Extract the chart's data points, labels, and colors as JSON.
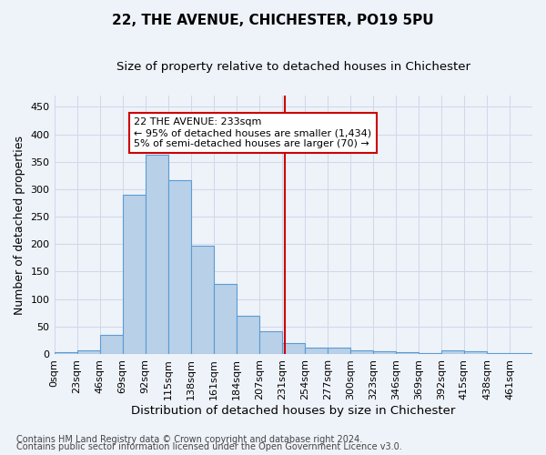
{
  "title": "22, THE AVENUE, CHICHESTER, PO19 5PU",
  "subtitle": "Size of property relative to detached houses in Chichester",
  "xlabel": "Distribution of detached houses by size in Chichester",
  "ylabel": "Number of detached properties",
  "footer_line1": "Contains HM Land Registry data © Crown copyright and database right 2024.",
  "footer_line2": "Contains public sector information licensed under the Open Government Licence v3.0.",
  "bar_labels": [
    "0sqm",
    "23sqm",
    "46sqm",
    "69sqm",
    "92sqm",
    "115sqm",
    "138sqm",
    "161sqm",
    "184sqm",
    "207sqm",
    "231sqm",
    "254sqm",
    "277sqm",
    "300sqm",
    "323sqm",
    "346sqm",
    "369sqm",
    "392sqm",
    "415sqm",
    "438sqm",
    "461sqm"
  ],
  "bar_values": [
    4,
    6,
    35,
    290,
    362,
    317,
    197,
    128,
    70,
    42,
    20,
    11,
    11,
    7,
    5,
    3,
    2,
    6,
    5,
    2,
    1
  ],
  "bar_color": "#b8d0e8",
  "bar_edge_color": "#5b9bd5",
  "bg_color": "#eef2f9",
  "grid_color": "#d0d8e8",
  "annotation_text": "22 THE AVENUE: 233sqm\n← 95% of detached houses are smaller (1,434)\n5% of semi-detached houses are larger (70) →",
  "vline_x": 10.13,
  "ylim": [
    0,
    470
  ],
  "yticks": [
    0,
    50,
    100,
    150,
    200,
    250,
    300,
    350,
    400,
    450
  ],
  "annotation_box_facecolor": "#ffffff",
  "annotation_box_edgecolor": "#cc0000",
  "vline_color": "#cc0000",
  "title_fontsize": 11,
  "subtitle_fontsize": 9.5,
  "xlabel_fontsize": 9.5,
  "ylabel_fontsize": 9,
  "tick_fontsize": 8,
  "annotation_fontsize": 8,
  "footer_fontsize": 7
}
